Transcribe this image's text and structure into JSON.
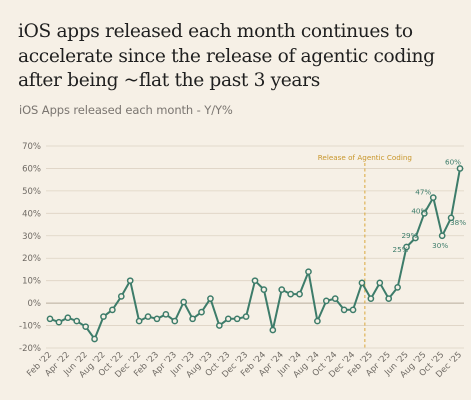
{
  "title": "iOS apps released each month continues to accelerate since the release of agentic coding after being ~flat the past 3 years",
  "subtitle": "iOS Apps released each month - Y/Y%",
  "chart_data": {
    "type": "line",
    "y_unit": "%",
    "ylim": [
      -20,
      70
    ],
    "yticks": [
      -20,
      -10,
      0,
      10,
      20,
      30,
      40,
      50,
      60,
      70
    ],
    "grid": true,
    "x": [
      "Feb '22",
      "Mar '22",
      "Apr '22",
      "May '22",
      "Jun '22",
      "Jul '22",
      "Aug '22",
      "Sep '22",
      "Oct '22",
      "Nov '22",
      "Dec '22",
      "Jan '23",
      "Feb '23",
      "Mar '23",
      "Apr '23",
      "May '23",
      "Jun '23",
      "Jul '23",
      "Aug '23",
      "Sep '23",
      "Oct '23",
      "Nov '23",
      "Dec '23",
      "Jan '24",
      "Feb '24",
      "Mar '24",
      "Apr '24",
      "May '24",
      "Jun '24",
      "Jul '24",
      "Aug '24",
      "Sep '24",
      "Oct '24",
      "Nov '24",
      "Dec '24",
      "Jan '25",
      "Feb '25",
      "Mar '25",
      "Apr '25",
      "May '25",
      "Jun '25",
      "Jul '25",
      "Aug '25",
      "Sep '25",
      "Oct '25",
      "Nov '25",
      "Dec '25"
    ],
    "xtick_labels": [
      "Feb '22",
      "Apr '22",
      "Jun '22",
      "Aug '22",
      "Oct '22",
      "Dec '22",
      "Feb '23",
      "Apr '23",
      "Jun '23",
      "Aug '23",
      "Oct '23",
      "Dec '23",
      "Feb '24",
      "Apr '24",
      "Jun '24",
      "Aug '24",
      "Oct '24",
      "Dec '24",
      "Feb '25",
      "Apr '25",
      "Jun '25",
      "Aug '25",
      "Oct '25",
      "Dec '25"
    ],
    "values": [
      -7,
      -8.5,
      -6.5,
      -8,
      -10.5,
      -16,
      -6,
      -3,
      3,
      10,
      -8,
      -6,
      -7,
      -5,
      -8,
      0.5,
      -7,
      -4,
      2,
      -10,
      -7,
      -7,
      -6,
      10,
      6,
      -12,
      6,
      4,
      4,
      14,
      -8,
      1,
      2,
      -3,
      -3,
      9,
      2,
      9,
      2,
      7,
      25,
      29,
      40,
      47,
      30,
      38,
      60
    ],
    "data_labels": [
      {
        "x": "Jun '25",
        "text": "25%"
      },
      {
        "x": "Jul '25",
        "text": "29%"
      },
      {
        "x": "Aug '25",
        "text": "40%"
      },
      {
        "x": "Sep '25",
        "text": "47%"
      },
      {
        "x": "Oct '25",
        "text": "30%"
      },
      {
        "x": "Nov '25",
        "text": "38%"
      },
      {
        "x": "Dec '25",
        "text": "60%"
      }
    ],
    "annotation": {
      "x": "Feb '25",
      "text": "Release of Agentic Coding"
    },
    "colors": {
      "line": "#3d7c6a",
      "annotation": "#d9a83c",
      "background": "#f6f0e6"
    }
  }
}
